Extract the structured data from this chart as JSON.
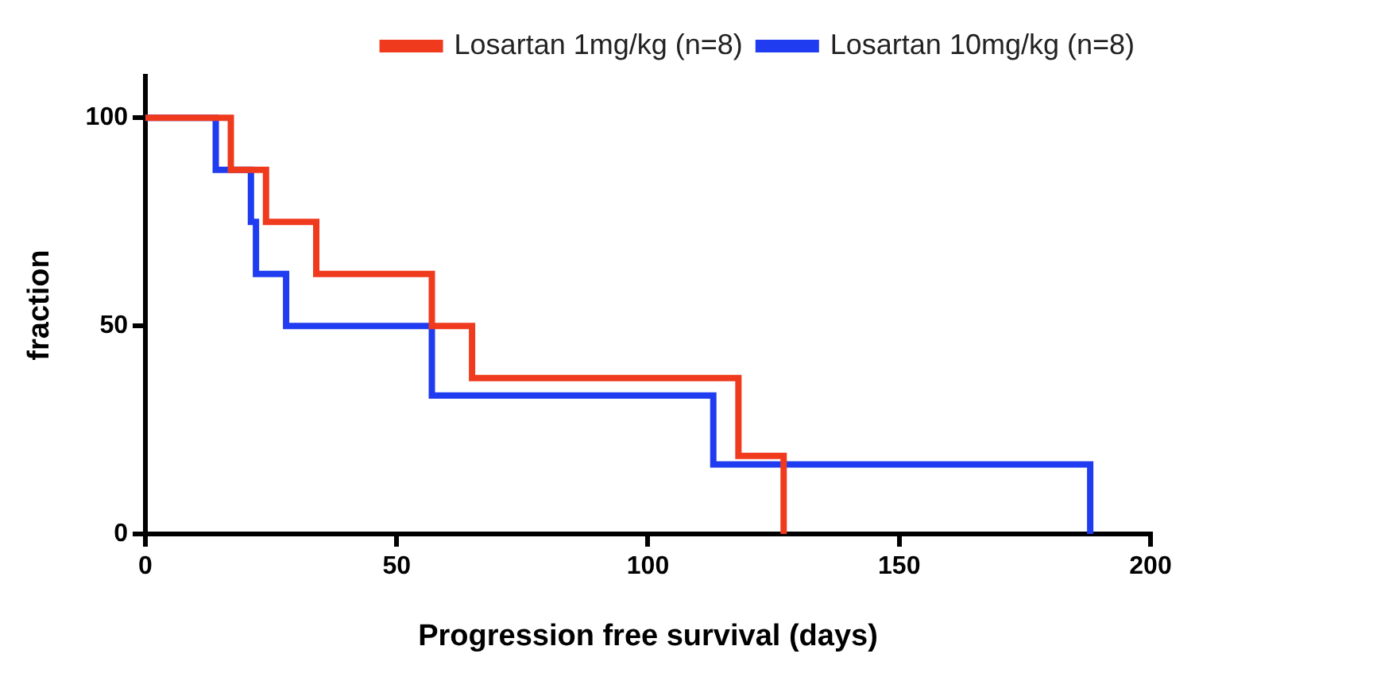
{
  "chart_data": {
    "type": "step",
    "xlabel": "Progression free survival (days)",
    "ylabel": "fraction",
    "series": [
      {
        "name": "Losartan 1mg/kg (n=8)",
        "color": "#f03a1e",
        "x": [
          0,
          17,
          24,
          34,
          57,
          65,
          118,
          127
        ],
        "values": [
          100,
          87.5,
          75,
          62.5,
          50,
          37.5,
          18.75,
          0
        ]
      },
      {
        "name": "Losartan 10mg/kg (n=8)",
        "color": "#1f3cf0",
        "x": [
          0,
          14,
          21,
          22,
          28,
          57,
          113,
          188
        ],
        "values": [
          100,
          87.5,
          75,
          62.5,
          50,
          33.3,
          16.7,
          0
        ]
      }
    ],
    "xlim": [
      0,
      200
    ],
    "xticks": [
      0,
      50,
      100,
      150,
      200
    ],
    "ylim": [
      0,
      110
    ],
    "yticks": [
      0,
      50,
      100
    ],
    "grid": false,
    "legend": "top right",
    "marker": "none",
    "line_style": "solid"
  }
}
